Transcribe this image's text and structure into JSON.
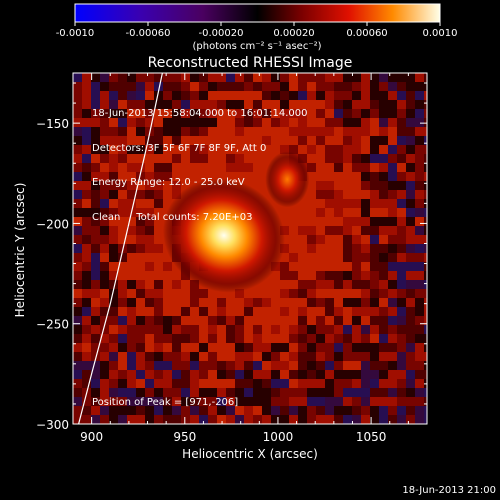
{
  "colorbar": {
    "ticks": [
      "-0.0010",
      "-0.00060",
      "-0.00020",
      "0.00020",
      "0.00060",
      "0.0010"
    ],
    "unit_label": "(photons cm⁻² s⁻¹ asec⁻²)",
    "range": [
      -0.001,
      0.001
    ]
  },
  "chart_data": {
    "type": "heatmap",
    "title": "Reconstructed RHESSI Image",
    "xlabel": "Heliocentric X (arcsec)",
    "ylabel": "Heliocentric Y (arcsec)",
    "xlim": [
      890,
      1080
    ],
    "ylim": [
      -300,
      -125
    ],
    "x_ticks": [
      900,
      950,
      1000,
      1050
    ],
    "y_ticks": [
      -150,
      -200,
      -250,
      -300
    ],
    "x_tick_labels": [
      "900",
      "950",
      "1000",
      "1050"
    ],
    "y_tick_labels": [
      "−150",
      "−200",
      "−250",
      "−300"
    ],
    "sources": [
      {
        "x": 971,
        "y": -206,
        "intensity": 1.0
      },
      {
        "x": 1005,
        "y": -178,
        "intensity": 0.55
      }
    ],
    "limb_points": [
      [
        938,
        -125
      ],
      [
        930,
        -160
      ],
      [
        920,
        -200
      ],
      [
        910,
        -240
      ],
      [
        900,
        -275
      ],
      [
        893,
        -300
      ]
    ],
    "annotations": [
      "18-Jun-2013 15:58:04.000 to 16:01:14.000",
      "Detectors: 3F 5F 6F 7F 8F 9F, Att 0",
      "Energy Range: 12.0 - 25.0 keV",
      "Clean     Total counts: 7.20E+03"
    ],
    "peak_label": "Position of Peak = [971,-206]"
  },
  "footer_timestamp": "18-Jun-2013 21:00"
}
